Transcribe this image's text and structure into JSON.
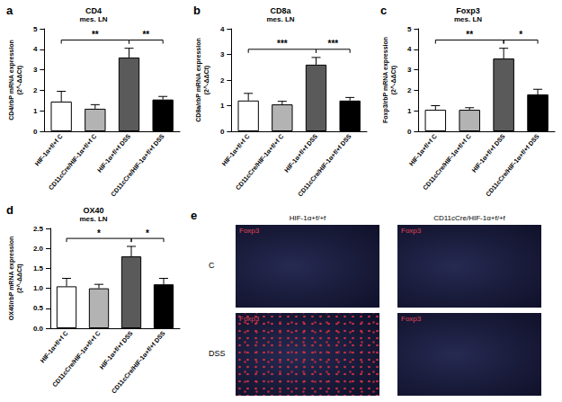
{
  "chart_data": [
    {
      "panel": "a",
      "type": "bar",
      "title": "CD4",
      "subtitle": "mes. LN",
      "y_label": "CD4/rbP mRNA expression\n(2^-ΔΔCt)",
      "categories": [
        "HIF-1α+f/+f C",
        "CD11cCre/HIF-1α+f/+f C",
        "HIF-1α+f/+f DSS",
        "CD11cCre/HIF-1α+f/+f DSS"
      ],
      "values": [
        1.45,
        1.1,
        3.6,
        1.55
      ],
      "errors": [
        0.5,
        0.2,
        0.45,
        0.15
      ],
      "colors": [
        "#ffffff",
        "#b3b3b3",
        "#5a5a5a",
        "#000000"
      ],
      "ylim": [
        0,
        5
      ],
      "yticks": [
        0,
        1,
        2,
        3,
        4,
        5
      ],
      "significance": [
        {
          "from": 0,
          "to": 2,
          "label": "**"
        },
        {
          "from": 2,
          "to": 3,
          "label": "**"
        }
      ]
    },
    {
      "panel": "b",
      "type": "bar",
      "title": "CD8a",
      "subtitle": "mes. LN",
      "y_label": "CD8a/rbP mRNA expression\n(2^-ΔΔCt)",
      "categories": [
        "HIF-1α+f/+f C",
        "CD11cCre/HIF-1α+f/+f C",
        "HIF-1α+f/+f DSS",
        "CD11cCre/HIF-1α+f/+f DSS"
      ],
      "values": [
        1.2,
        1.05,
        2.6,
        1.2
      ],
      "errors": [
        0.28,
        0.12,
        0.28,
        0.12
      ],
      "colors": [
        "#ffffff",
        "#b3b3b3",
        "#5a5a5a",
        "#000000"
      ],
      "ylim": [
        0,
        4
      ],
      "yticks": [
        0,
        1,
        2,
        3,
        4
      ],
      "significance": [
        {
          "from": 0,
          "to": 2,
          "label": "***"
        },
        {
          "from": 2,
          "to": 3,
          "label": "***"
        }
      ]
    },
    {
      "panel": "c",
      "type": "bar",
      "title": "Foxp3",
      "subtitle": "mes. LN",
      "y_label": "Foxp3/rbP mRNA expression\n(2^-ΔΔCt)",
      "categories": [
        "HIF-1α+f/+f C",
        "CD11cCre/HIF-1α+f/+f C",
        "HIF-1α+f/+f DSS",
        "CD11cCre/HIF-1α+f/+f DSS"
      ],
      "values": [
        1.05,
        1.05,
        3.55,
        1.8
      ],
      "errors": [
        0.2,
        0.1,
        0.5,
        0.25
      ],
      "colors": [
        "#ffffff",
        "#b3b3b3",
        "#5a5a5a",
        "#000000"
      ],
      "ylim": [
        0,
        5
      ],
      "yticks": [
        0,
        1,
        2,
        3,
        4,
        5
      ],
      "significance": [
        {
          "from": 0,
          "to": 2,
          "label": "**"
        },
        {
          "from": 2,
          "to": 3,
          "label": "*"
        }
      ]
    },
    {
      "panel": "d",
      "type": "bar",
      "title": "OX40",
      "subtitle": "mes. LN",
      "y_label": "OX40/rbP mRNA expression\n(2^-ΔΔCt)",
      "categories": [
        "HIF-1α+f/+f C",
        "CD11cCre/HIF-1α+f/+f C",
        "HIF-1α+f/+f DSS",
        "CD11cCre/HIF-1α+f/+f DSS"
      ],
      "values": [
        1.05,
        1.0,
        1.8,
        1.1
      ],
      "errors": [
        0.2,
        0.1,
        0.25,
        0.15
      ],
      "colors": [
        "#ffffff",
        "#b3b3b3",
        "#5a5a5a",
        "#000000"
      ],
      "ylim": [
        0,
        2.5
      ],
      "yticks": [
        {
          "value": 0,
          "label": "0.0"
        },
        {
          "value": 0.5,
          "label": "0.5"
        },
        {
          "value": 1,
          "label": "1.0"
        },
        {
          "value": 1.5,
          "label": "1.5"
        },
        {
          "value": 2,
          "label": "2.0"
        },
        {
          "value": 2.5,
          "label": "2.5"
        }
      ],
      "significance": [
        {
          "from": 0,
          "to": 2,
          "label": "*"
        },
        {
          "from": 2,
          "to": 3,
          "label": "*"
        }
      ]
    }
  ],
  "image_panel": {
    "panel": "e",
    "columns": [
      "HIF-1α+f/+f",
      "CD11cCre/HIF-1α+f/+f"
    ],
    "rows": [
      "C",
      "DSS"
    ],
    "stain": "Foxp3"
  }
}
